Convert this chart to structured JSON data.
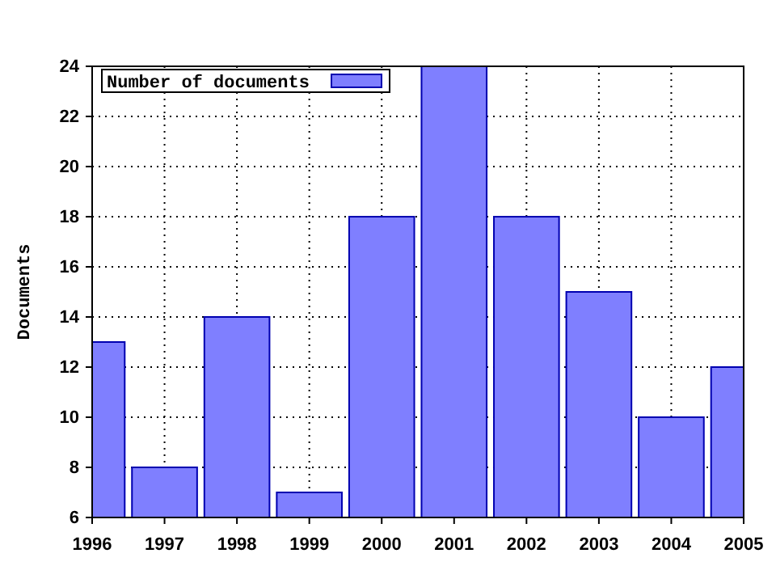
{
  "chart_data": {
    "type": "bar",
    "ylabel": "Documents",
    "x": [
      1996,
      1997,
      1998,
      1999,
      2000,
      2001,
      2002,
      2003,
      2004,
      2005
    ],
    "series": [
      {
        "name": "Number of documents",
        "color": "#7f7fff",
        "values": [
          13,
          8,
          14,
          7,
          18,
          24,
          18,
          15,
          10,
          12
        ]
      }
    ],
    "xlim": [
      1996,
      2005
    ],
    "xticks": [
      1996,
      1997,
      1998,
      1999,
      2000,
      2001,
      2002,
      2003,
      2004,
      2005
    ],
    "ylim": [
      6,
      24
    ],
    "yticks": [
      6,
      8,
      10,
      12,
      14,
      16,
      18,
      20,
      22,
      24
    ],
    "grid": true,
    "legend": "top left"
  }
}
